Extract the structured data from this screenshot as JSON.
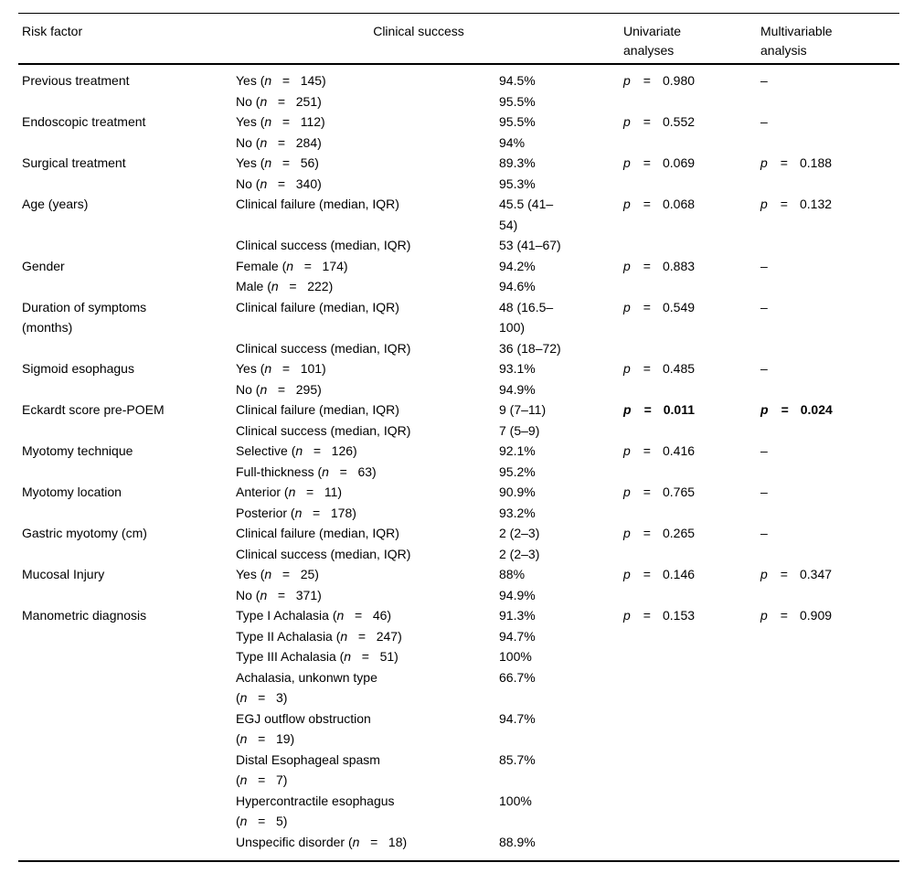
{
  "table": {
    "header": {
      "risk_factor": "Risk factor",
      "clinical_success": "Clinical success",
      "univariate": "Univariate\nanalyses",
      "multivariable": "Multivariable\nanalysis"
    },
    "rows": [
      {
        "factor": "Previous treatment",
        "entries": [
          {
            "label": "Yes (n   =   145)",
            "value": "94.5%"
          },
          {
            "label": "No (n   =   251)",
            "value": "95.5%"
          }
        ],
        "uni": {
          "p": "p",
          "eq": "=",
          "value": "0.980"
        },
        "multi": {
          "dash": "–"
        }
      },
      {
        "factor": "Endoscopic treatment",
        "entries": [
          {
            "label": "Yes (n   =   112)",
            "value": "95.5%"
          },
          {
            "label": "No (n   =   284)",
            "value": "94%"
          }
        ],
        "uni": {
          "p": "p",
          "eq": "=",
          "value": "0.552"
        },
        "multi": {
          "dash": "–"
        }
      },
      {
        "factor": "Surgical treatment",
        "entries": [
          {
            "label": "Yes (n   =   56)",
            "value": "89.3%"
          },
          {
            "label": "No (n   =   340)",
            "value": "95.3%"
          }
        ],
        "uni": {
          "p": "p",
          "eq": "=",
          "value": "0.069"
        },
        "multi": {
          "p": "p",
          "eq": "=",
          "value": "0.188"
        }
      },
      {
        "factor": "Age (years)",
        "entries": [
          {
            "label": "Clinical failure (median, IQR)",
            "value": "45.5 (41–\n54)"
          },
          {
            "label": "Clinical success (median, IQR)",
            "value": "53 (41–67)"
          }
        ],
        "uni": {
          "p": "p",
          "eq": "=",
          "value": "0.068"
        },
        "multi": {
          "p": "p",
          "eq": "=",
          "value": "0.132"
        }
      },
      {
        "factor": "Gender",
        "entries": [
          {
            "label": "Female (n   =   174)",
            "value": "94.2%"
          },
          {
            "label": "Male (n   =   222)",
            "value": "94.6%"
          }
        ],
        "uni": {
          "p": "p",
          "eq": "=",
          "value": "0.883"
        },
        "multi": {
          "dash": "–"
        }
      },
      {
        "factor": "Duration of symptoms\n(months)",
        "entries": [
          {
            "label": "Clinical failure (median, IQR)",
            "value": "48 (16.5–\n100)"
          },
          {
            "label": "Clinical success (median, IQR)",
            "value": "36 (18–72)"
          }
        ],
        "uni": {
          "p": "p",
          "eq": "=",
          "value": "0.549"
        },
        "multi": {
          "dash": "–"
        }
      },
      {
        "factor": "Sigmoid esophagus",
        "entries": [
          {
            "label": "Yes (n   =   101)",
            "value": "93.1%"
          },
          {
            "label": "No (n   =   295)",
            "value": "94.9%"
          }
        ],
        "uni": {
          "p": "p",
          "eq": "=",
          "value": "0.485"
        },
        "multi": {
          "dash": "–"
        }
      },
      {
        "factor": "Eckardt score pre-POEM",
        "significant": true,
        "entries": [
          {
            "label": "Clinical failure (median, IQR)",
            "value": "9 (7–11)"
          },
          {
            "label": "Clinical success (median, IQR)",
            "value": "7 (5–9)"
          }
        ],
        "uni": {
          "p": "p",
          "eq": "=",
          "value": "0.011"
        },
        "multi": {
          "p": "p",
          "eq": "=",
          "value": "0.024"
        }
      },
      {
        "factor": "Myotomy technique",
        "entries": [
          {
            "label": "Selective (n   =   126)",
            "value": "92.1%"
          },
          {
            "label": "Full-thickness (n   =   63)",
            "value": "95.2%"
          }
        ],
        "uni": {
          "p": "p",
          "eq": "=",
          "value": "0.416"
        },
        "multi": {
          "dash": "–"
        }
      },
      {
        "factor": "Myotomy location",
        "entries": [
          {
            "label": "Anterior (n   =   11)",
            "value": "90.9%"
          },
          {
            "label": "Posterior (n   =   178)",
            "value": "93.2%"
          }
        ],
        "uni": {
          "p": "p",
          "eq": "=",
          "value": "0.765"
        },
        "multi": {
          "dash": "–"
        }
      },
      {
        "factor": "Gastric myotomy (cm)",
        "entries": [
          {
            "label": "Clinical failure (median, IQR)",
            "value": "2 (2–3)"
          },
          {
            "label": "Clinical success (median, IQR)",
            "value": "2 (2–3)"
          }
        ],
        "uni": {
          "p": "p",
          "eq": "=",
          "value": "0.265"
        },
        "multi": {
          "dash": "–"
        }
      },
      {
        "factor": "Mucosal Injury",
        "entries": [
          {
            "label": "Yes (n   =   25)",
            "value": "88%"
          },
          {
            "label": "No (n   =   371)",
            "value": "94.9%"
          }
        ],
        "uni": {
          "p": "p",
          "eq": "=",
          "value": "0.146"
        },
        "multi": {
          "p": "p",
          "eq": "=",
          "value": "0.347"
        }
      },
      {
        "factor": "Manometric diagnosis",
        "entries": [
          {
            "label": "Type I Achalasia (n   =   46)",
            "value": "91.3%"
          },
          {
            "label": "Type II Achalasia (n   =   247)",
            "value": "94.7%"
          },
          {
            "label": "Type III Achalasia (n   =   51)",
            "value": "100%"
          },
          {
            "label": "Achalasia, unkonwn type\n(n   =   3)",
            "value": "66.7%"
          },
          {
            "label": "EGJ outflow obstruction\n(n   =   19)",
            "value": "94.7%"
          },
          {
            "label": "Distal Esophageal spasm\n(n   =   7)",
            "value": "85.7%"
          },
          {
            "label": "Hypercontractile esophagus\n(n   =   5)",
            "value": "100%"
          },
          {
            "label": "Unspecific disorder (n   =   18)",
            "value": "88.9%"
          }
        ],
        "uni": {
          "p": "p",
          "eq": "=",
          "value": "0.153"
        },
        "multi": {
          "p": "p",
          "eq": "=",
          "value": "0.909"
        }
      }
    ]
  }
}
